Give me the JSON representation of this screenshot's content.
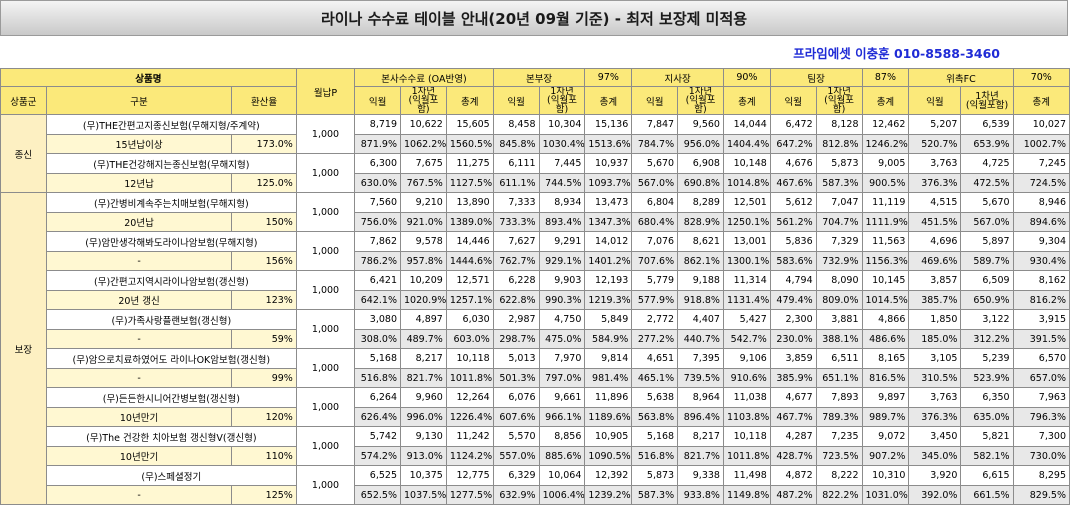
{
  "title": "라이나 수수료 테이블 안내(20년 09월 기준) - 최저 보장제 미적용",
  "contact": "프라임에셋 이충훈 010-8588-3460",
  "headers": {
    "product": "상품명",
    "group": "상품군",
    "division": "구분",
    "conversion": "환산율",
    "monthly": "월납P",
    "sections": [
      {
        "name": "본사수수료 (OA반영)",
        "rate": ""
      },
      {
        "name": "본부장",
        "rate": "97%"
      },
      {
        "name": "지사장",
        "rate": "90%"
      },
      {
        "name": "팀장",
        "rate": "87%"
      },
      {
        "name": "위촉FC",
        "rate": "70%"
      }
    ],
    "sub": {
      "first": "익월",
      "year_line1": "1차년",
      "year_line2": "(익월포함)",
      "total": "총계"
    }
  },
  "groups": [
    {
      "name": "종신",
      "start": 0,
      "count": 2
    },
    {
      "name": "보장",
      "start": 2,
      "count": 8
    }
  ],
  "products": [
    {
      "name": "(무)THE간편고지종신보험(무해지형/주계약)",
      "plan": "15년납이상",
      "rate": "173.0%",
      "monthly": "1,000",
      "vals": [
        [
          "8,719",
          "10,622",
          "15,605"
        ],
        [
          "8,458",
          "10,304",
          "15,136"
        ],
        [
          "7,847",
          "9,560",
          "14,044"
        ],
        [
          "6,472",
          "8,128",
          "12,462"
        ],
        [
          "5,207",
          "6,539",
          "10,027"
        ]
      ],
      "pcts": [
        [
          "871.9%",
          "1062.2%",
          "1560.5%"
        ],
        [
          "845.8%",
          "1030.4%",
          "1513.6%"
        ],
        [
          "784.7%",
          "956.0%",
          "1404.4%"
        ],
        [
          "647.2%",
          "812.8%",
          "1246.2%"
        ],
        [
          "520.7%",
          "653.9%",
          "1002.7%"
        ]
      ]
    },
    {
      "name": "(무)THE건강해지는종신보험(무해지형)",
      "plan": "12년납",
      "rate": "125.0%",
      "monthly": "1,000",
      "vals": [
        [
          "6,300",
          "7,675",
          "11,275"
        ],
        [
          "6,111",
          "7,445",
          "10,937"
        ],
        [
          "5,670",
          "6,908",
          "10,148"
        ],
        [
          "4,676",
          "5,873",
          "9,005"
        ],
        [
          "3,763",
          "4,725",
          "7,245"
        ]
      ],
      "pcts": [
        [
          "630.0%",
          "767.5%",
          "1127.5%"
        ],
        [
          "611.1%",
          "744.5%",
          "1093.7%"
        ],
        [
          "567.0%",
          "690.8%",
          "1014.8%"
        ],
        [
          "467.6%",
          "587.3%",
          "900.5%"
        ],
        [
          "376.3%",
          "472.5%",
          "724.5%"
        ]
      ]
    },
    {
      "name": "(무)간병비계속주는치매보험(무해지형)",
      "plan": "20년납",
      "rate": "150%",
      "monthly": "1,000",
      "vals": [
        [
          "7,560",
          "9,210",
          "13,890"
        ],
        [
          "7,333",
          "8,934",
          "13,473"
        ],
        [
          "6,804",
          "8,289",
          "12,501"
        ],
        [
          "5,612",
          "7,047",
          "11,119"
        ],
        [
          "4,515",
          "5,670",
          "8,946"
        ]
      ],
      "pcts": [
        [
          "756.0%",
          "921.0%",
          "1389.0%"
        ],
        [
          "733.3%",
          "893.4%",
          "1347.3%"
        ],
        [
          "680.4%",
          "828.9%",
          "1250.1%"
        ],
        [
          "561.2%",
          "704.7%",
          "1111.9%"
        ],
        [
          "451.5%",
          "567.0%",
          "894.6%"
        ]
      ]
    },
    {
      "name": "(무)암만생각해봐도라이나암보험(무해지형)",
      "plan": "-",
      "rate": "156%",
      "monthly": "1,000",
      "vals": [
        [
          "7,862",
          "9,578",
          "14,446"
        ],
        [
          "7,627",
          "9,291",
          "14,012"
        ],
        [
          "7,076",
          "8,621",
          "13,001"
        ],
        [
          "5,836",
          "7,329",
          "11,563"
        ],
        [
          "4,696",
          "5,897",
          "9,304"
        ]
      ],
      "pcts": [
        [
          "786.2%",
          "957.8%",
          "1444.6%"
        ],
        [
          "762.7%",
          "929.1%",
          "1401.2%"
        ],
        [
          "707.6%",
          "862.1%",
          "1300.1%"
        ],
        [
          "583.6%",
          "732.9%",
          "1156.3%"
        ],
        [
          "469.6%",
          "589.7%",
          "930.4%"
        ]
      ]
    },
    {
      "name": "(무)간편고지역시라이나암보험(갱신형)",
      "plan": "20년 갱신",
      "rate": "123%",
      "monthly": "1,000",
      "vals": [
        [
          "6,421",
          "10,209",
          "12,571"
        ],
        [
          "6,228",
          "9,903",
          "12,193"
        ],
        [
          "5,779",
          "9,188",
          "11,314"
        ],
        [
          "4,794",
          "8,090",
          "10,145"
        ],
        [
          "3,857",
          "6,509",
          "8,162"
        ]
      ],
      "pcts": [
        [
          "642.1%",
          "1020.9%",
          "1257.1%"
        ],
        [
          "622.8%",
          "990.3%",
          "1219.3%"
        ],
        [
          "577.9%",
          "918.8%",
          "1131.4%"
        ],
        [
          "479.4%",
          "809.0%",
          "1014.5%"
        ],
        [
          "385.7%",
          "650.9%",
          "816.2%"
        ]
      ]
    },
    {
      "name": "(무)가족사랑플랜보험(갱신형)",
      "plan": "-",
      "rate": "59%",
      "monthly": "1,000",
      "vals": [
        [
          "3,080",
          "4,897",
          "6,030"
        ],
        [
          "2,987",
          "4,750",
          "5,849"
        ],
        [
          "2,772",
          "4,407",
          "5,427"
        ],
        [
          "2,300",
          "3,881",
          "4,866"
        ],
        [
          "1,850",
          "3,122",
          "3,915"
        ]
      ],
      "pcts": [
        [
          "308.0%",
          "489.7%",
          "603.0%"
        ],
        [
          "298.7%",
          "475.0%",
          "584.9%"
        ],
        [
          "277.2%",
          "440.7%",
          "542.7%"
        ],
        [
          "230.0%",
          "388.1%",
          "486.6%"
        ],
        [
          "185.0%",
          "312.2%",
          "391.5%"
        ]
      ]
    },
    {
      "name": "(무)암으로치료하였어도 라이나OK암보험(갱신형)",
      "plan": "-",
      "rate": "99%",
      "monthly": "1,000",
      "vals": [
        [
          "5,168",
          "8,217",
          "10,118"
        ],
        [
          "5,013",
          "7,970",
          "9,814"
        ],
        [
          "4,651",
          "7,395",
          "9,106"
        ],
        [
          "3,859",
          "6,511",
          "8,165"
        ],
        [
          "3,105",
          "5,239",
          "6,570"
        ]
      ],
      "pcts": [
        [
          "516.8%",
          "821.7%",
          "1011.8%"
        ],
        [
          "501.3%",
          "797.0%",
          "981.4%"
        ],
        [
          "465.1%",
          "739.5%",
          "910.6%"
        ],
        [
          "385.9%",
          "651.1%",
          "816.5%"
        ],
        [
          "310.5%",
          "523.9%",
          "657.0%"
        ]
      ]
    },
    {
      "name": "(무)든든한시니어간병보험(갱신형)",
      "plan": "10년만기",
      "rate": "120%",
      "monthly": "1,000",
      "vals": [
        [
          "6,264",
          "9,960",
          "12,264"
        ],
        [
          "6,076",
          "9,661",
          "11,896"
        ],
        [
          "5,638",
          "8,964",
          "11,038"
        ],
        [
          "4,677",
          "7,893",
          "9,897"
        ],
        [
          "3,763",
          "6,350",
          "7,963"
        ]
      ],
      "pcts": [
        [
          "626.4%",
          "996.0%",
          "1226.4%"
        ],
        [
          "607.6%",
          "966.1%",
          "1189.6%"
        ],
        [
          "563.8%",
          "896.4%",
          "1103.8%"
        ],
        [
          "467.7%",
          "789.3%",
          "989.7%"
        ],
        [
          "376.3%",
          "635.0%",
          "796.3%"
        ]
      ]
    },
    {
      "name": "(무)The 건강한 치아보험 갱신형V(갱신형)",
      "plan": "10년만기",
      "rate": "110%",
      "monthly": "1,000",
      "vals": [
        [
          "5,742",
          "9,130",
          "11,242"
        ],
        [
          "5,570",
          "8,856",
          "10,905"
        ],
        [
          "5,168",
          "8,217",
          "10,118"
        ],
        [
          "4,287",
          "7,235",
          "9,072"
        ],
        [
          "3,450",
          "5,821",
          "7,300"
        ]
      ],
      "pcts": [
        [
          "574.2%",
          "913.0%",
          "1124.2%"
        ],
        [
          "557.0%",
          "885.6%",
          "1090.5%"
        ],
        [
          "516.8%",
          "821.7%",
          "1011.8%"
        ],
        [
          "428.7%",
          "723.5%",
          "907.2%"
        ],
        [
          "345.0%",
          "582.1%",
          "730.0%"
        ]
      ]
    },
    {
      "name": "(무)스페셜정기",
      "plan": "-",
      "rate": "125%",
      "monthly": "1,000",
      "vals": [
        [
          "6,525",
          "10,375",
          "12,775"
        ],
        [
          "6,329",
          "10,064",
          "12,392"
        ],
        [
          "5,873",
          "9,338",
          "11,498"
        ],
        [
          "4,872",
          "8,222",
          "10,310"
        ],
        [
          "3,920",
          "6,615",
          "8,295"
        ]
      ],
      "pcts": [
        [
          "652.5%",
          "1037.5%",
          "1277.5%"
        ],
        [
          "632.9%",
          "1006.4%",
          "1239.2%"
        ],
        [
          "587.3%",
          "933.8%",
          "1149.8%"
        ],
        [
          "487.2%",
          "822.2%",
          "1031.0%"
        ],
        [
          "392.0%",
          "661.5%",
          "829.5%"
        ]
      ]
    }
  ]
}
